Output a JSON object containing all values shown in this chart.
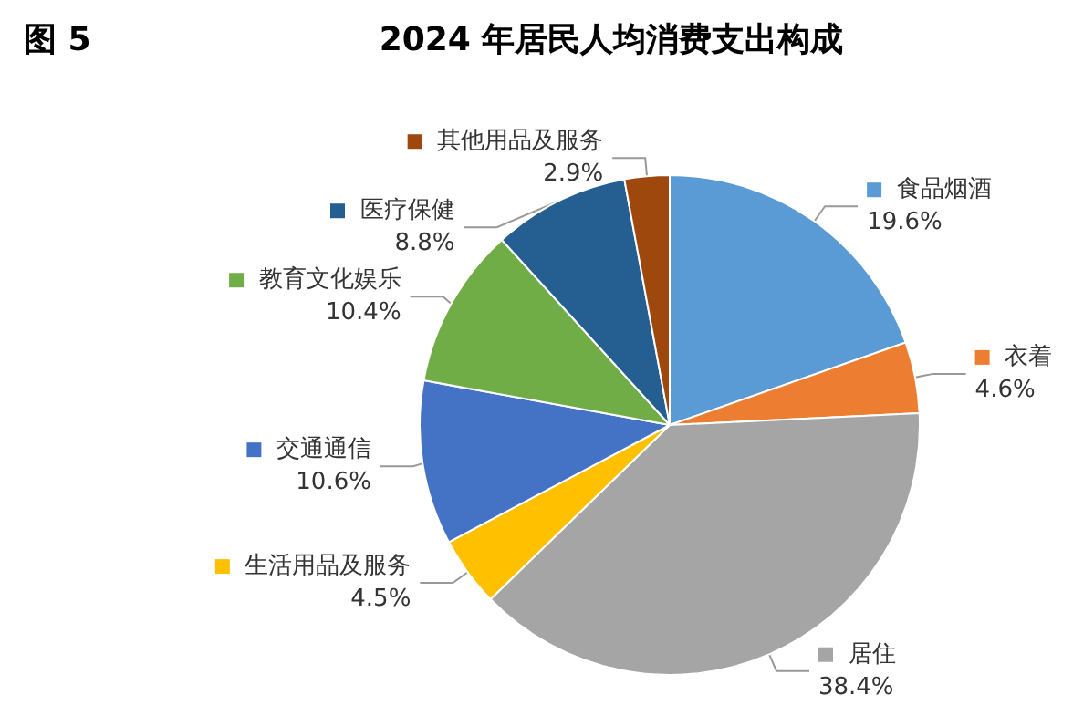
{
  "chart_data": {
    "type": "pie",
    "title": "2024 年居民人均消费支出构成",
    "annotations": [
      "图 5"
    ],
    "categories": [
      "食品烟酒",
      "衣着",
      "居住",
      "生活用品及服务",
      "交通通信",
      "教育文化娱乐",
      "医疗保健",
      "其他用品及服务"
    ],
    "values": [
      19.6,
      4.6,
      38.4,
      4.5,
      10.6,
      10.4,
      8.8,
      2.9
    ],
    "colors": [
      "#5b9bd5",
      "#ed7d31",
      "#a5a5a5",
      "#ffc000",
      "#4472c4",
      "#70ad47",
      "#255e91",
      "#9e480e"
    ],
    "value_labels": [
      "19.6%",
      "4.6%",
      "38.4%",
      "4.5%",
      "10.6%",
      "10.4%",
      "8.8%",
      "2.9%"
    ],
    "legend": "left"
  }
}
